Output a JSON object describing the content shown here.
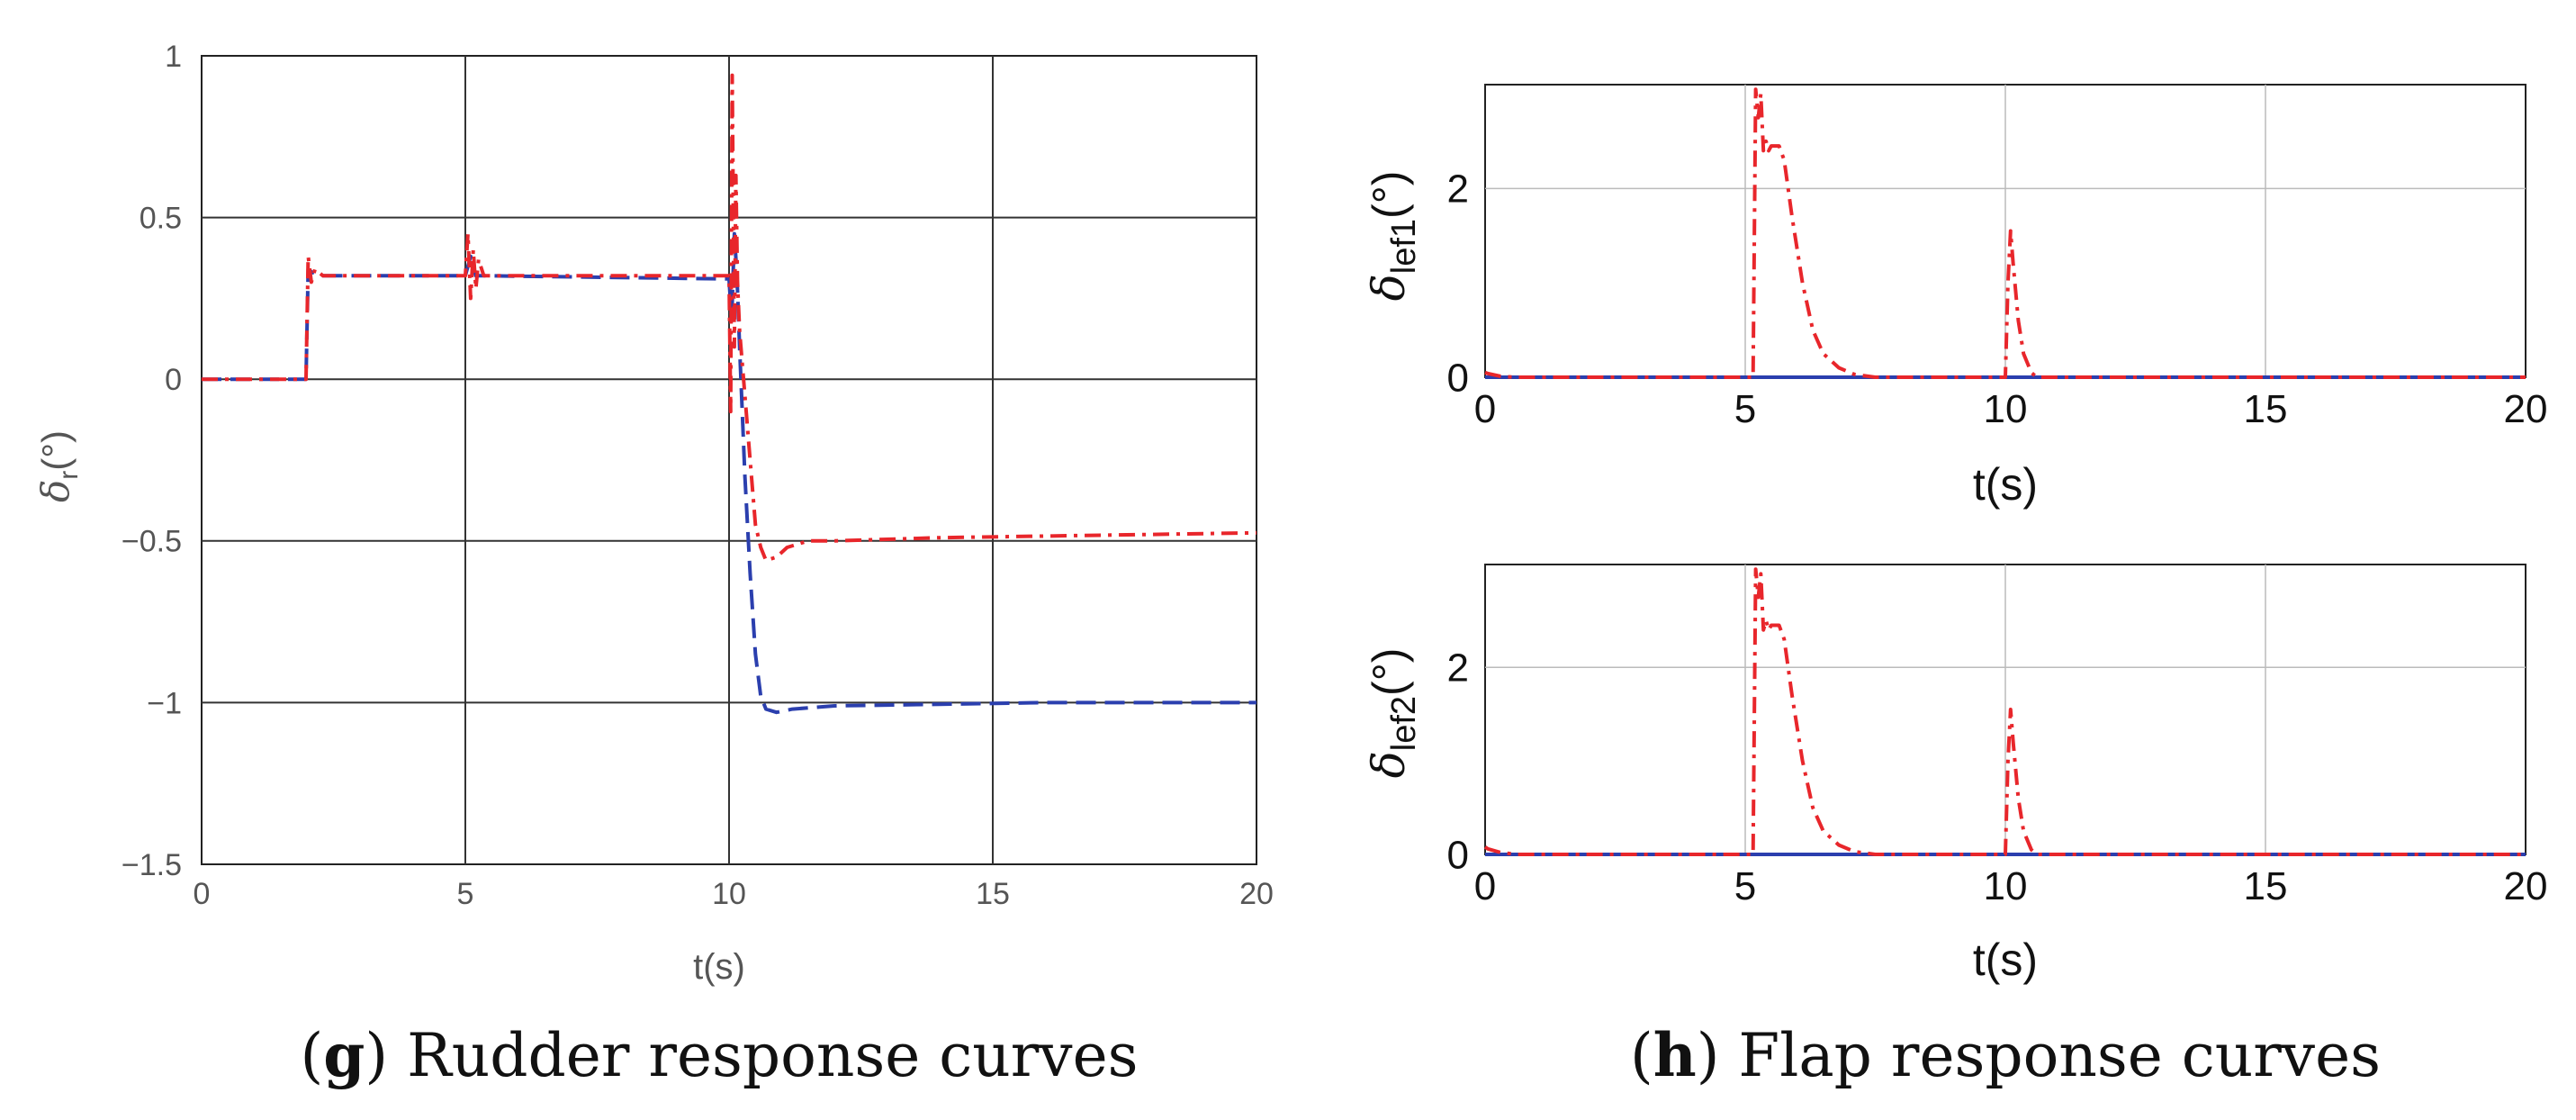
{
  "colors": {
    "red": "#e8262b",
    "blue": "#2b3fae",
    "axis": "#222222",
    "grid_dark": "#333333",
    "grid_light": "#bbbbbb",
    "text_gray": "#555555"
  },
  "chart_data": [
    {
      "id": "g",
      "type": "line",
      "ylabel_base": "δ",
      "ylabel_sub": "r",
      "ylabel_suffix": "(°)",
      "xlabel": "t(s)",
      "xlim": [
        0,
        20
      ],
      "ylim": [
        -1.5,
        1
      ],
      "xticks": [
        0,
        5,
        10,
        15,
        20
      ],
      "yticks": [
        -1.5,
        -1,
        -0.5,
        0,
        0.5,
        1
      ],
      "ytick_labels": [
        "−1.5",
        "−1",
        "−0.5",
        "0",
        "0.5",
        "1"
      ],
      "grid": true,
      "caption_letter": "g",
      "caption_text": " Rudder response curves",
      "series": [
        {
          "name": "blue dashed",
          "style": "dashed",
          "color": "blue",
          "x": [
            0,
            1.98,
            2.02,
            2.1,
            2.3,
            5.0,
            5.1,
            5.2,
            5.4,
            10.0,
            10.05,
            10.1,
            10.15,
            10.2,
            10.3,
            10.4,
            10.5,
            10.6,
            10.7,
            10.9,
            11.2,
            12,
            14,
            16,
            18,
            20
          ],
          "y": [
            0,
            0,
            0.34,
            0.33,
            0.32,
            0.32,
            0.38,
            0.32,
            0.32,
            0.31,
            0.18,
            0.45,
            0.32,
            0.1,
            -0.3,
            -0.6,
            -0.85,
            -0.98,
            -1.02,
            -1.03,
            -1.02,
            -1.01,
            -1.005,
            -1.0,
            -1.0,
            -1.0
          ]
        },
        {
          "name": "red dash-dot",
          "style": "dashdot",
          "color": "red",
          "x": [
            0,
            1.98,
            2.02,
            2.08,
            2.15,
            2.3,
            5.0,
            5.05,
            5.1,
            5.15,
            5.2,
            5.25,
            5.35,
            10.0,
            10.03,
            10.06,
            10.1,
            10.13,
            10.16,
            10.2,
            10.3,
            10.4,
            10.5,
            10.6,
            10.7,
            10.9,
            11.1,
            11.5,
            12,
            14,
            16,
            18,
            20
          ],
          "y": [
            0,
            0,
            0.38,
            0.3,
            0.34,
            0.32,
            0.32,
            0.45,
            0.25,
            0.4,
            0.28,
            0.37,
            0.32,
            0.32,
            -0.1,
            0.94,
            0.1,
            0.63,
            0.3,
            0.15,
            -0.05,
            -0.25,
            -0.45,
            -0.52,
            -0.56,
            -0.55,
            -0.52,
            -0.5,
            -0.5,
            -0.49,
            -0.485,
            -0.48,
            -0.475
          ]
        }
      ]
    },
    {
      "id": "h1",
      "type": "line",
      "ylabel_base": "δ",
      "ylabel_sub": "lef1",
      "ylabel_suffix": "(°)",
      "xlabel": "t(s)",
      "xlim": [
        0,
        20
      ],
      "ylim": [
        0,
        3.1
      ],
      "xticks": [
        0,
        5,
        10,
        15,
        20
      ],
      "yticks": [
        0,
        2
      ],
      "ytick_labels": [
        "0",
        "2"
      ],
      "grid": true,
      "series": [
        {
          "name": "blue solid",
          "style": "solid",
          "color": "blue",
          "x": [
            0,
            20
          ],
          "y": [
            0,
            0
          ]
        },
        {
          "name": "red dash-dot",
          "style": "dashdot",
          "color": "red",
          "x": [
            0,
            0.05,
            0.3,
            0.6,
            5.0,
            5.15,
            5.2,
            5.25,
            5.3,
            5.35,
            5.4,
            5.45,
            5.5,
            5.6,
            5.65,
            5.75,
            5.9,
            6.1,
            6.3,
            6.5,
            6.8,
            7.1,
            7.5,
            10.0,
            10.05,
            10.1,
            10.15,
            10.25,
            10.35,
            10.5,
            10.6,
            20
          ],
          "y": [
            0.05,
            0.04,
            0.01,
            0,
            0,
            0,
            3.05,
            2.75,
            3.0,
            2.4,
            2.5,
            2.4,
            2.45,
            2.45,
            2.45,
            2.3,
            1.7,
            1.0,
            0.5,
            0.25,
            0.1,
            0.03,
            0,
            0,
            1.0,
            1.55,
            1.2,
            0.6,
            0.25,
            0.05,
            0,
            0
          ]
        }
      ]
    },
    {
      "id": "h2",
      "type": "line",
      "ylabel_base": "δ",
      "ylabel_sub": "lef2",
      "ylabel_suffix": "(°)",
      "xlabel": "t(s)",
      "xlim": [
        0,
        20
      ],
      "ylim": [
        0,
        3.1
      ],
      "xticks": [
        0,
        5,
        10,
        15,
        20
      ],
      "yticks": [
        0,
        2
      ],
      "ytick_labels": [
        "0",
        "2"
      ],
      "grid": true,
      "caption_letter": "h",
      "caption_text": " Flap response curves",
      "series": [
        {
          "name": "blue solid",
          "style": "solid",
          "color": "blue",
          "x": [
            0,
            20
          ],
          "y": [
            0,
            0
          ]
        },
        {
          "name": "red dash-dot",
          "style": "dashdot",
          "color": "red",
          "x": [
            0,
            0.05,
            0.3,
            0.6,
            5.0,
            5.15,
            5.2,
            5.25,
            5.3,
            5.35,
            5.4,
            5.45,
            5.5,
            5.6,
            5.65,
            5.75,
            5.9,
            6.1,
            6.3,
            6.5,
            6.8,
            7.1,
            7.5,
            10.0,
            10.05,
            10.1,
            10.15,
            10.25,
            10.35,
            10.5,
            10.6,
            20
          ],
          "y": [
            0.08,
            0.06,
            0.02,
            0,
            0,
            0,
            3.05,
            2.75,
            3.0,
            2.4,
            2.5,
            2.4,
            2.45,
            2.45,
            2.45,
            2.3,
            1.7,
            1.0,
            0.5,
            0.25,
            0.1,
            0.03,
            0,
            0,
            1.0,
            1.55,
            1.2,
            0.6,
            0.25,
            0.05,
            0,
            0
          ]
        }
      ]
    }
  ]
}
